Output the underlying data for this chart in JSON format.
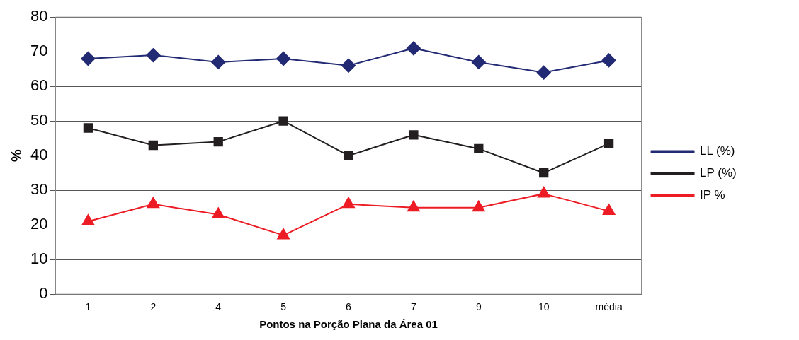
{
  "chart_data": {
    "type": "line",
    "xlabel": "Pontos na Porção Plana da Área 01",
    "ylabel": "%",
    "categories": [
      "1",
      "2",
      "4",
      "5",
      "6",
      "7",
      "9",
      "10",
      "média"
    ],
    "series": [
      {
        "name": "LL (%)",
        "color": "#232a74",
        "marker": "diamond",
        "values": [
          68,
          69,
          67,
          68,
          66,
          71,
          67,
          64,
          67.5
        ]
      },
      {
        "name": "LP (%)",
        "color": "#231f20",
        "marker": "square",
        "values": [
          48,
          43,
          44,
          50,
          40,
          46,
          42,
          35,
          43.5
        ]
      },
      {
        "name": "IP %",
        "color": "#ed1c24",
        "marker": "triangle",
        "values": [
          21,
          26,
          23,
          17,
          26,
          25,
          25,
          29,
          24
        ]
      }
    ],
    "ylim": [
      0,
      80
    ],
    "yticks": [
      0,
      10,
      20,
      30,
      40,
      50,
      60,
      70,
      80
    ],
    "grid": "y",
    "legend": "right",
    "line_style": "solid"
  }
}
